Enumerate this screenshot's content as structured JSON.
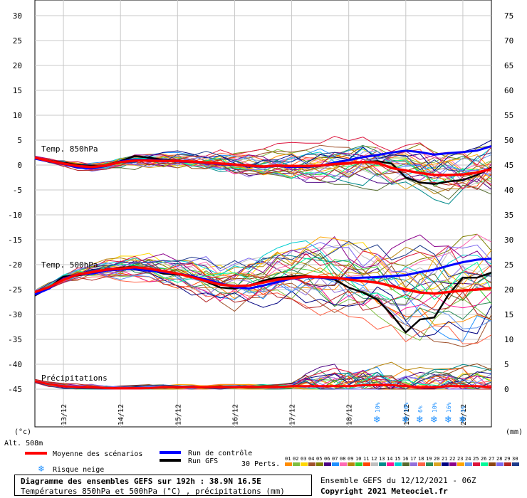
{
  "chart_data": {
    "type": "line",
    "title": "Diagramme des ensembles GEFS sur 192h : 38.9N 16.5E",
    "subtitle": "Températures 850hPa et 500hPa (°C) , précipitations (mm)",
    "run_info": "Ensemble GEFS du 12/12/2021 - 06Z",
    "copyright": "Copyright 2021 Meteociel.fr",
    "altitude": "Alt. 508m",
    "left_axis_unit": "(°c)",
    "right_axis_unit": "(mm)",
    "left_ticks": [
      "30",
      "25",
      "20",
      "15",
      "10",
      "5",
      "0",
      "-5",
      "-10",
      "-15",
      "-20",
      "-25",
      "-30",
      "-35",
      "-40",
      "-45"
    ],
    "right_ticks": [
      "75",
      "70",
      "65",
      "60",
      "55",
      "50",
      "45",
      "40",
      "35",
      "30",
      "25",
      "20",
      "15",
      "10",
      "5",
      "0"
    ],
    "x_labels": [
      "13/12",
      "14/12",
      "15/12",
      "16/12",
      "17/12",
      "18/12",
      "19/12",
      "20/12"
    ],
    "x_hours": [
      0,
      6,
      12,
      18,
      24,
      30,
      36,
      42,
      48,
      54,
      60,
      66,
      72,
      78,
      84,
      90,
      96,
      102,
      108,
      114,
      120,
      126,
      132,
      138,
      144,
      150,
      156,
      162,
      168,
      174,
      180,
      186,
      192
    ],
    "section_labels": {
      "t850": "Temp. 850hPa",
      "t500": "Temp. 500hPa",
      "precip": "Précipitations"
    },
    "legend": {
      "mean": "Moyenne des scénarios",
      "control": "Run de contrôle",
      "gfs": "Run GFS",
      "snow": "Risque neige",
      "perts": "30 Perts.",
      "member_numbers": [
        "01",
        "02",
        "03",
        "04",
        "05",
        "06",
        "07",
        "08",
        "09",
        "10",
        "11",
        "12",
        "13",
        "14",
        "15",
        "16",
        "17",
        "18",
        "19",
        "20",
        "21",
        "22",
        "23",
        "24",
        "25",
        "26",
        "27",
        "28",
        "29",
        "30"
      ],
      "member_colors": [
        "#ff8c00",
        "#7fbf40",
        "#ffd700",
        "#a0522d",
        "#808000",
        "#4b0082",
        "#1e90ff",
        "#ff69b4",
        "#b8860b",
        "#32cd32",
        "#ff4500",
        "#c0c0c0",
        "#008b8b",
        "#ff1493",
        "#00ced1",
        "#556b2f",
        "#9370db",
        "#ff6347",
        "#2e8b57",
        "#daa520",
        "#000080",
        "#8b008b",
        "#ffa500",
        "#6495ed",
        "#dc143c",
        "#00fa9a",
        "#8b4513",
        "#7b68ee",
        "#b22222",
        "#1e3a8a"
      ]
    },
    "colors": {
      "mean": "#ff0000",
      "control": "#0000ff",
      "gfs": "#000000",
      "grid": "#c8c8c8"
    },
    "series": [
      {
        "name": "Moyenne 850hPa",
        "values": [
          1.5,
          0.8,
          0.3,
          -0.2,
          -0.4,
          -0.1,
          0.6,
          0.9,
          0.9,
          0.8,
          0.8,
          0.7,
          0.5,
          0.3,
          0.1,
          -0.1,
          -0.3,
          -0.1,
          -0.2,
          -0.2,
          -0.1,
          0.2,
          0.4,
          0.6,
          0.5,
          -0.6,
          -1.1,
          -1.6,
          -2.0,
          -2.0,
          -1.9,
          -1.5,
          -0.8
        ]
      },
      {
        "name": "Contrôle 850hPa",
        "values": [
          1.3,
          0.7,
          0.2,
          -0.5,
          -0.6,
          -0.2,
          0.7,
          1.1,
          1.0,
          0.9,
          0.7,
          0.6,
          0.4,
          0.2,
          0.0,
          -0.2,
          -0.4,
          -0.2,
          -0.4,
          -0.3,
          -0.2,
          0.5,
          1.0,
          1.6,
          2.0,
          2.5,
          2.9,
          2.6,
          2.1,
          2.4,
          2.6,
          2.9,
          3.8
        ]
      },
      {
        "name": "GFS 850hPa",
        "values": [
          1.4,
          0.9,
          0.5,
          0.0,
          -0.2,
          -0.1,
          0.8,
          1.8,
          1.5,
          1.0,
          0.9,
          0.7,
          0.5,
          0.3,
          0.1,
          0.0,
          -0.3,
          -0.2,
          -0.4,
          -0.4,
          -0.2,
          0.1,
          0.4,
          0.6,
          0.8,
          0.3,
          -2.5,
          -3.5,
          -3.8,
          -3.3,
          -3.0,
          -2.0,
          -0.5
        ]
      },
      {
        "name": "Moyenne 500hPa",
        "values": [
          -25.5,
          -24.5,
          -23.0,
          -22.0,
          -21.5,
          -21.0,
          -20.8,
          -20.5,
          -20.8,
          -21.3,
          -21.8,
          -22.5,
          -23.3,
          -24.0,
          -24.3,
          -24.2,
          -23.6,
          -23.0,
          -22.7,
          -22.4,
          -22.5,
          -22.6,
          -23.0,
          -23.3,
          -23.6,
          -24.3,
          -25.0,
          -25.6,
          -25.8,
          -25.5,
          -25.2,
          -25.0,
          -24.7
        ]
      },
      {
        "name": "Contrôle 500hPa",
        "values": [
          -26.0,
          -24.8,
          -22.8,
          -22.0,
          -21.8,
          -21.2,
          -21.0,
          -20.8,
          -21.2,
          -21.5,
          -21.8,
          -22.3,
          -23.0,
          -23.8,
          -24.5,
          -24.8,
          -24.2,
          -23.5,
          -22.8,
          -22.5,
          -22.6,
          -22.8,
          -22.7,
          -22.6,
          -22.5,
          -22.3,
          -22.1,
          -21.5,
          -21.0,
          -20.2,
          -19.5,
          -19.0,
          -18.8
        ]
      },
      {
        "name": "GFS 500hPa",
        "values": [
          -26.2,
          -24.6,
          -22.4,
          -22.2,
          -21.6,
          -21.0,
          -20.6,
          -20.4,
          -21.0,
          -21.8,
          -22.0,
          -22.2,
          -23.4,
          -24.6,
          -24.8,
          -24.2,
          -23.2,
          -22.6,
          -22.4,
          -22.2,
          -22.6,
          -23.0,
          -24.6,
          -25.6,
          -27.0,
          -30.0,
          -33.6,
          -31.0,
          -30.6,
          -26.0,
          -22.6,
          -22.6,
          -21.6
        ]
      },
      {
        "name": "Moyenne précip (mm)",
        "values": [
          0.8,
          0.5,
          0.3,
          0.2,
          0.2,
          0.1,
          0.1,
          0.1,
          0.1,
          0.2,
          0.2,
          0.2,
          0.2,
          0.2,
          0.2,
          0.2,
          0.2,
          0.2,
          0.3,
          0.3,
          0.3,
          0.3,
          0.3,
          0.4,
          0.4,
          0.4,
          0.3,
          0.2,
          0.2,
          0.3,
          0.3,
          0.3,
          0.2
        ]
      }
    ],
    "snow_risk": [
      {
        "hour": 144,
        "pct": "10%"
      },
      {
        "hour": 156,
        "pct": "10%"
      },
      {
        "hour": 162,
        "pct": "6%"
      },
      {
        "hour": 168,
        "pct": "10%"
      },
      {
        "hour": 174,
        "pct": "16%"
      },
      {
        "hour": 180,
        "pct": "3%"
      }
    ]
  }
}
